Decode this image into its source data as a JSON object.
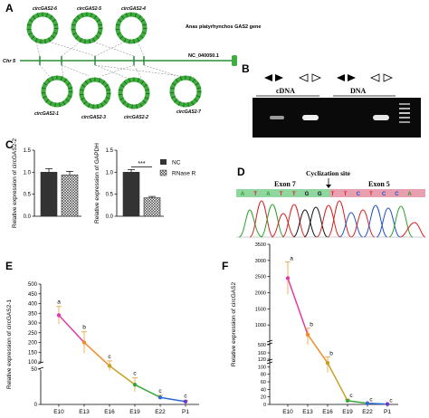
{
  "panel_labels": {
    "a": "A",
    "b": "B",
    "c": "C",
    "d": "D",
    "e": "E",
    "f": "F"
  },
  "panel_a": {
    "gene_title": "Anas platyrhynchos GAS2 gene",
    "chr_label": "Chr 5",
    "accession": "NC_040050.1",
    "top_circles": [
      "circGAS2-6",
      "circGAS2-5",
      "circGAS2-4"
    ],
    "bottom_circles": [
      "circGAS2-1",
      "circGAS2-3",
      "circGAS2-2",
      "circGAS2-7"
    ],
    "colors": {
      "circle": "#3fae3f",
      "circle_dark": "#1f6e1f",
      "chr_line": "#2e8b3a"
    }
  },
  "panel_b": {
    "cdna_label": "cDNA",
    "dna_label": "DNA",
    "arrow_icons": [
      "convergent-primers-icon",
      "divergent-primers-icon",
      "convergent-primers-icon",
      "divergent-primers-icon"
    ]
  },
  "panel_d": {
    "site_label": "Cyclization site",
    "exon_left": "Exon 7",
    "exon_right": "Exon 5",
    "seq_left": [
      "A",
      "T",
      "A",
      "T",
      "T",
      "G",
      "G"
    ],
    "seq_right": [
      "T",
      "T",
      "C",
      "T",
      "C",
      "C",
      "A"
    ],
    "colors": {
      "exon_left": "#8fd6a0",
      "exon_right": "#e8a0b0"
    }
  },
  "chart_data": [
    {
      "id": "C-left",
      "type": "bar",
      "ylabel": "Relative expression of circGAS2-2",
      "ylim": [
        0,
        1.5
      ],
      "yticks": [
        "0.0",
        "0.5",
        "1.0",
        "1.5"
      ],
      "series": [
        {
          "name": "NC",
          "values": [
            1.0
          ]
        },
        {
          "name": "RNase R",
          "values": [
            0.94
          ]
        }
      ],
      "errors": [
        0.08,
        0.08
      ]
    },
    {
      "id": "C-right",
      "type": "bar",
      "ylabel": "Relative expression of GAPDH",
      "ylim": [
        0,
        1.5
      ],
      "yticks": [
        "0.0",
        "0.5",
        "1.0",
        "1.5"
      ],
      "series": [
        {
          "name": "NC",
          "values": [
            1.0
          ]
        },
        {
          "name": "RNase R",
          "values": [
            0.42
          ]
        }
      ],
      "errors": [
        0.06,
        0.03
      ],
      "annotation": "***",
      "legend": [
        "NC",
        "RNase R"
      ]
    },
    {
      "id": "E",
      "type": "line",
      "ylabel": "Relative expression of circGAS2-1",
      "categories": [
        "E10",
        "E13",
        "E16",
        "E19",
        "E22",
        "P1"
      ],
      "values": [
        340,
        200,
        80,
        28,
        10,
        4
      ],
      "errors": [
        45,
        55,
        25,
        10,
        3,
        2
      ],
      "letters": [
        "a",
        "b",
        "c",
        "c",
        "c",
        "c"
      ],
      "yticks": [
        "0",
        "50",
        "100",
        "150",
        "200",
        "250",
        "300",
        "350",
        "400",
        "450",
        "500"
      ],
      "colors": [
        "#e23aa6",
        "#f08c2a",
        "#c8a020",
        "#3aa63a",
        "#2a6ad8",
        "#6a3ad8"
      ]
    },
    {
      "id": "F",
      "type": "line",
      "ylabel": "Relative expression of circGAS2",
      "categories": [
        "E10",
        "E13",
        "E16",
        "E19",
        "E22",
        "P1"
      ],
      "values": [
        2450,
        700,
        110,
        10,
        3,
        1
      ],
      "errors": [
        500,
        200,
        25,
        4,
        1,
        0.5
      ],
      "letters": [
        "a",
        "b",
        "b",
        "c",
        "c",
        "c"
      ],
      "yticks": [
        "0",
        "20",
        "40",
        "60",
        "80",
        "100",
        "120",
        "160",
        "500",
        "1000",
        "1500",
        "2000",
        "2500",
        "3000",
        "3500"
      ],
      "colors": [
        "#e23aa6",
        "#f08c2a",
        "#c8a020",
        "#3aa63a",
        "#2a6ad8",
        "#6a3ad8"
      ]
    }
  ]
}
